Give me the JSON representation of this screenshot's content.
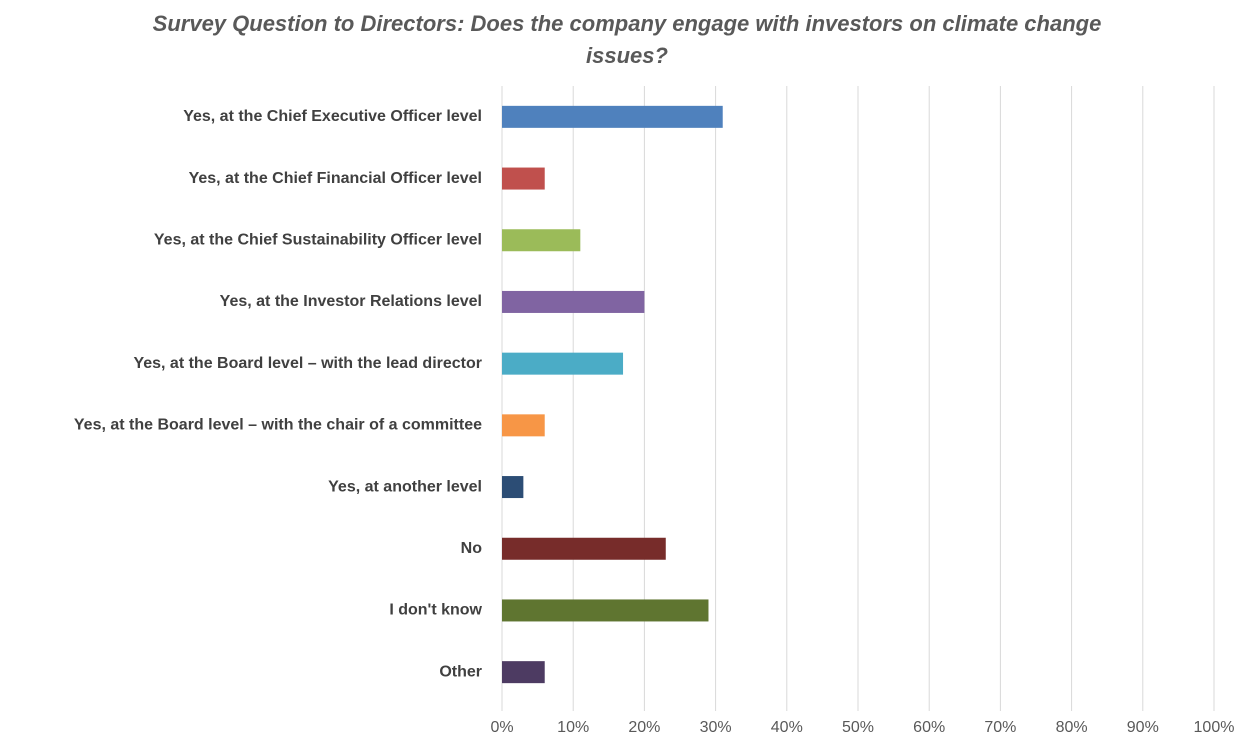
{
  "chart_data": {
    "type": "bar",
    "orientation": "horizontal",
    "title": "Survey Question to Directors: Does the company engage with investors on climate change issues?",
    "categories": [
      "Yes, at the Chief Executive Officer level",
      "Yes, at the Chief Financial Officer level",
      "Yes, at the Chief Sustainability Officer level",
      "Yes, at the Investor Relations level",
      "Yes, at the Board level – with the lead director",
      "Yes, at the Board level – with the chair of a committee",
      "Yes, at another level",
      "No",
      "I don't know",
      "Other"
    ],
    "values": [
      31,
      6,
      11,
      20,
      17,
      6,
      3,
      23,
      29,
      6
    ],
    "colors": [
      "#4f81bd",
      "#c0504d",
      "#9bbb59",
      "#8064a2",
      "#4bacc6",
      "#f79646",
      "#2c4d75",
      "#772c2a",
      "#5f7530",
      "#4d3b62"
    ],
    "xlim": [
      0,
      100
    ],
    "xticks": [
      {
        "value": 0,
        "label": "0%"
      },
      {
        "value": 10,
        "label": "10%"
      },
      {
        "value": 20,
        "label": "20%"
      },
      {
        "value": 30,
        "label": "30%"
      },
      {
        "value": 40,
        "label": "40%"
      },
      {
        "value": 50,
        "label": "50%"
      },
      {
        "value": 60,
        "label": "60%"
      },
      {
        "value": 70,
        "label": "70%"
      },
      {
        "value": 80,
        "label": "80%"
      },
      {
        "value": 90,
        "label": "90%"
      },
      {
        "value": 100,
        "label": "100%"
      }
    ],
    "grid": true
  }
}
